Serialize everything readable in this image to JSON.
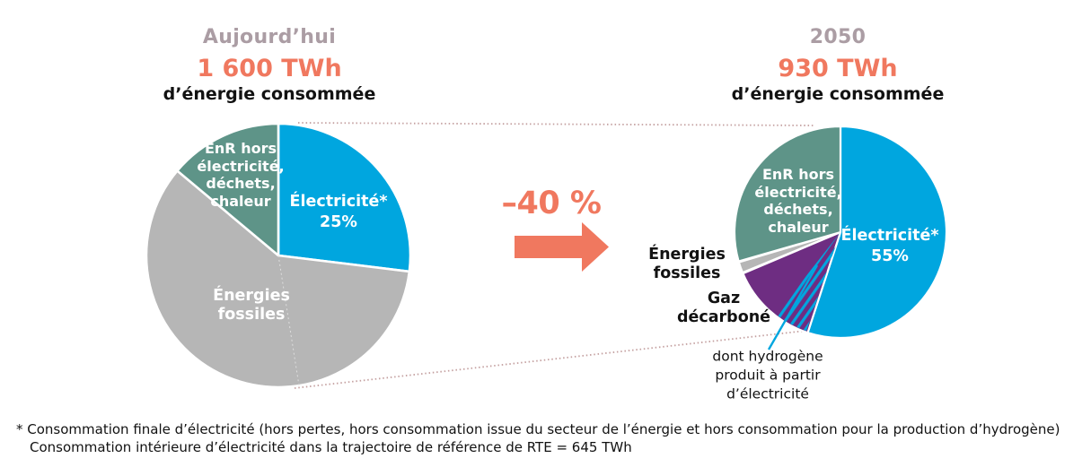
{
  "headers": {
    "left": {
      "period": "Aujourd’hui",
      "total": "1 600 TWh",
      "subtitle": "d’énergie consommée"
    },
    "right": {
      "period": "2050",
      "total": "930 TWh",
      "subtitle": "d’énergie consommée"
    }
  },
  "arrow": {
    "label": "–40 %"
  },
  "pie_labels": {
    "left": {
      "enr": "EnR hors\nélectricité,\ndéchets,\nchaleur",
      "elec": "Électricité*\n25%",
      "fossiles": "Énergies\nfossiles"
    },
    "right": {
      "enr": "EnR hors\nélectricité,\ndéchets,\nchaleur",
      "elec": "Électricité*\n55%",
      "fossiles": "Énergies\nfossiles",
      "gaz": "Gaz\ndécarboné",
      "hydrogene": "dont hydrogène\nproduit à partir\nd’électricité"
    }
  },
  "footnote": {
    "line1": "* Consommation finale d’électricité (hors pertes, hors consommation issue du secteur de l’énergie et hors consommation pour la production d’hydrogène)",
    "line2": "Consommation intérieure d’électricité dans la trajectoire de référence de RTE = 645 TWh"
  },
  "colors": {
    "electricity_blue": "#00a6df",
    "enr_teal": "#5e9488",
    "fossil_gray": "#b6b6b6",
    "gas_purple": "#6e2d82",
    "accent_salmon": "#f0785f",
    "header_mauve": "#ab9da4",
    "connector_dots": "#c4a0a0",
    "text_black": "#121212"
  },
  "chart_data": [
    {
      "type": "pie",
      "title": "Aujourd’hui",
      "total_label": "1 600 TWh d’énergie consommée",
      "slices": [
        {
          "label": "Électricité*",
          "pct_label": "25%",
          "pct": 25,
          "color": "#00a6df",
          "start_deg": 0,
          "end_deg": 97
        },
        {
          "label": "Énergies fossiles",
          "color": "#b6b6b6",
          "start_deg": 97,
          "end_deg": 310
        },
        {
          "label": "EnR hors électricité, déchets, chaleur",
          "color": "#5e9488",
          "start_deg": 310,
          "end_deg": 360
        }
      ]
    },
    {
      "type": "pie",
      "title": "2050",
      "total_label": "930 TWh d’énergie consommée",
      "slices": [
        {
          "label": "Électricité*",
          "pct_label": "55%",
          "pct": 55,
          "color": "#00a6df",
          "start_deg": 0,
          "end_deg": 198
        },
        {
          "label": "Gaz décarboné",
          "color": "#6e2d82",
          "start_deg": 198,
          "end_deg": 247,
          "hatch": {
            "label": "dont hydrogène produit à partir d’électricité",
            "start_deg": 199,
            "end_deg": 218,
            "stripe_color": "#00a6df"
          }
        },
        {
          "label": "Énergies fossiles",
          "color": "#b6b6b6",
          "start_deg": 247.5,
          "end_deg": 253.5
        },
        {
          "label": "EnR hors électricité, déchets, chaleur",
          "color": "#5e9488",
          "start_deg": 254,
          "end_deg": 360
        }
      ]
    }
  ]
}
